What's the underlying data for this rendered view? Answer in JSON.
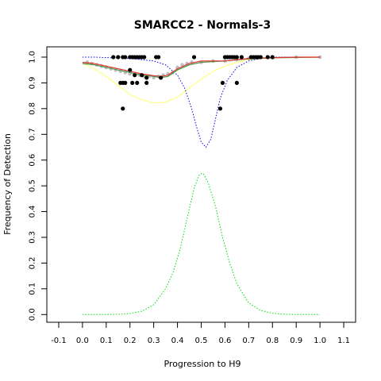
{
  "chart_data": {
    "type": "scatter",
    "title": "SMARCC2 - Normals-3",
    "xlabel": "Progression to H9",
    "ylabel": "Frequency of Detection",
    "xlim": [
      -0.15,
      1.15
    ],
    "ylim": [
      -0.03,
      1.04
    ],
    "x_ticks": [
      -0.1,
      0.0,
      0.1,
      0.2,
      0.3,
      0.4,
      0.5,
      0.6,
      0.7,
      0.8,
      0.9,
      1.0,
      1.1
    ],
    "x_tick_labels": [
      "-0.1",
      "0.0",
      "0.1",
      "0.2",
      "0.3",
      "0.4",
      "0.5",
      "0.6",
      "0.7",
      "0.8",
      "0.9",
      "1.0",
      "1.1"
    ],
    "y_ticks": [
      0.0,
      0.1,
      0.2,
      0.3,
      0.4,
      0.5,
      0.6,
      0.7,
      0.8,
      0.9,
      1.0
    ],
    "y_tick_labels": [
      "0.0",
      "0.1",
      "0.2",
      "0.3",
      "0.4",
      "0.5",
      "0.6",
      "0.7",
      "0.8",
      "0.9",
      "1.0"
    ],
    "grid": false,
    "series": [
      {
        "style": "points",
        "color": "#000000",
        "points": [
          {
            "x": 0.13,
            "y": 1.0
          },
          {
            "x": 0.15,
            "y": 1.0
          },
          {
            "x": 0.17,
            "y": 1.0
          },
          {
            "x": 0.18,
            "y": 1.0
          },
          {
            "x": 0.2,
            "y": 1.0
          },
          {
            "x": 0.21,
            "y": 1.0
          },
          {
            "x": 0.22,
            "y": 1.0
          },
          {
            "x": 0.23,
            "y": 1.0
          },
          {
            "x": 0.24,
            "y": 1.0
          },
          {
            "x": 0.25,
            "y": 1.0
          },
          {
            "x": 0.26,
            "y": 1.0
          },
          {
            "x": 0.31,
            "y": 1.0
          },
          {
            "x": 0.32,
            "y": 1.0
          },
          {
            "x": 0.47,
            "y": 1.0
          },
          {
            "x": 0.6,
            "y": 1.0
          },
          {
            "x": 0.61,
            "y": 1.0
          },
          {
            "x": 0.62,
            "y": 1.0
          },
          {
            "x": 0.63,
            "y": 1.0
          },
          {
            "x": 0.64,
            "y": 1.0
          },
          {
            "x": 0.65,
            "y": 1.0
          },
          {
            "x": 0.67,
            "y": 1.0
          },
          {
            "x": 0.71,
            "y": 1.0
          },
          {
            "x": 0.72,
            "y": 1.0
          },
          {
            "x": 0.73,
            "y": 1.0
          },
          {
            "x": 0.74,
            "y": 1.0
          },
          {
            "x": 0.75,
            "y": 1.0
          },
          {
            "x": 0.78,
            "y": 1.0
          },
          {
            "x": 0.8,
            "y": 1.0
          },
          {
            "x": 0.2,
            "y": 0.95
          },
          {
            "x": 0.22,
            "y": 0.93
          },
          {
            "x": 0.25,
            "y": 0.93
          },
          {
            "x": 0.27,
            "y": 0.92
          },
          {
            "x": 0.33,
            "y": 0.92
          },
          {
            "x": 0.16,
            "y": 0.9
          },
          {
            "x": 0.17,
            "y": 0.9
          },
          {
            "x": 0.18,
            "y": 0.9
          },
          {
            "x": 0.21,
            "y": 0.9
          },
          {
            "x": 0.23,
            "y": 0.9
          },
          {
            "x": 0.27,
            "y": 0.9
          },
          {
            "x": 0.59,
            "y": 0.9
          },
          {
            "x": 0.65,
            "y": 0.9
          },
          {
            "x": 0.17,
            "y": 0.8
          },
          {
            "x": 0.58,
            "y": 0.8
          }
        ]
      },
      {
        "style": "points",
        "color": "#bebebe",
        "points": [
          {
            "x": 0.02,
            "y": 0.98
          },
          {
            "x": 0.04,
            "y": 0.975
          },
          {
            "x": 0.06,
            "y": 0.97
          },
          {
            "x": 0.08,
            "y": 0.965
          },
          {
            "x": 0.1,
            "y": 0.96
          },
          {
            "x": 0.12,
            "y": 0.955
          },
          {
            "x": 0.14,
            "y": 0.95
          },
          {
            "x": 0.16,
            "y": 0.945
          },
          {
            "x": 0.18,
            "y": 0.94
          },
          {
            "x": 0.2,
            "y": 0.935
          },
          {
            "x": 0.22,
            "y": 0.93
          },
          {
            "x": 0.24,
            "y": 0.93
          },
          {
            "x": 0.26,
            "y": 0.925
          },
          {
            "x": 0.28,
            "y": 0.925
          },
          {
            "x": 0.3,
            "y": 0.92
          },
          {
            "x": 0.32,
            "y": 0.925
          },
          {
            "x": 0.34,
            "y": 0.93
          },
          {
            "x": 0.36,
            "y": 0.935
          },
          {
            "x": 0.38,
            "y": 0.94
          },
          {
            "x": 0.4,
            "y": 0.96
          },
          {
            "x": 0.42,
            "y": 0.97
          },
          {
            "x": 0.44,
            "y": 0.975
          },
          {
            "x": 0.46,
            "y": 0.98
          },
          {
            "x": 0.5,
            "y": 0.98
          },
          {
            "x": 0.55,
            "y": 0.985
          },
          {
            "x": 0.6,
            "y": 0.985
          },
          {
            "x": 0.65,
            "y": 0.99
          },
          {
            "x": 0.7,
            "y": 0.995
          },
          {
            "x": 0.8,
            "y": 0.998
          },
          {
            "x": 0.9,
            "y": 1.0
          },
          {
            "x": 1.0,
            "y": 1.0
          }
        ]
      },
      {
        "style": "solid",
        "color": "#e0302b",
        "points": [
          {
            "x": 0.0,
            "y": 0.98
          },
          {
            "x": 0.05,
            "y": 0.975
          },
          {
            "x": 0.1,
            "y": 0.965
          },
          {
            "x": 0.15,
            "y": 0.955
          },
          {
            "x": 0.2,
            "y": 0.945
          },
          {
            "x": 0.25,
            "y": 0.935
          },
          {
            "x": 0.3,
            "y": 0.928
          },
          {
            "x": 0.33,
            "y": 0.925
          },
          {
            "x": 0.36,
            "y": 0.93
          },
          {
            "x": 0.4,
            "y": 0.955
          },
          {
            "x": 0.45,
            "y": 0.975
          },
          {
            "x": 0.5,
            "y": 0.985
          },
          {
            "x": 0.55,
            "y": 0.985
          },
          {
            "x": 0.6,
            "y": 0.985
          },
          {
            "x": 0.65,
            "y": 0.99
          },
          {
            "x": 0.7,
            "y": 0.995
          },
          {
            "x": 0.8,
            "y": 0.998
          },
          {
            "x": 0.9,
            "y": 1.0
          },
          {
            "x": 1.0,
            "y": 1.0
          }
        ]
      },
      {
        "style": "solid",
        "color": "#4a9a4a",
        "points": [
          {
            "x": 0.0,
            "y": 0.975
          },
          {
            "x": 0.05,
            "y": 0.97
          },
          {
            "x": 0.1,
            "y": 0.96
          },
          {
            "x": 0.15,
            "y": 0.95
          },
          {
            "x": 0.2,
            "y": 0.94
          },
          {
            "x": 0.25,
            "y": 0.93
          },
          {
            "x": 0.3,
            "y": 0.925
          },
          {
            "x": 0.33,
            "y": 0.92
          },
          {
            "x": 0.36,
            "y": 0.925
          },
          {
            "x": 0.4,
            "y": 0.95
          },
          {
            "x": 0.45,
            "y": 0.97
          },
          {
            "x": 0.5,
            "y": 0.98
          },
          {
            "x": 0.6,
            "y": 0.985
          },
          {
            "x": 0.7,
            "y": 0.993
          },
          {
            "x": 0.8,
            "y": 0.997
          },
          {
            "x": 1.0,
            "y": 1.0
          }
        ]
      },
      {
        "style": "dotted",
        "color": "#0000ff",
        "points": [
          {
            "x": 0.0,
            "y": 1.0
          },
          {
            "x": 0.05,
            "y": 1.0
          },
          {
            "x": 0.1,
            "y": 0.998
          },
          {
            "x": 0.15,
            "y": 0.997
          },
          {
            "x": 0.2,
            "y": 0.995
          },
          {
            "x": 0.25,
            "y": 0.99
          },
          {
            "x": 0.3,
            "y": 0.985
          },
          {
            "x": 0.35,
            "y": 0.97
          },
          {
            "x": 0.4,
            "y": 0.93
          },
          {
            "x": 0.43,
            "y": 0.88
          },
          {
            "x": 0.46,
            "y": 0.8
          },
          {
            "x": 0.48,
            "y": 0.73
          },
          {
            "x": 0.5,
            "y": 0.67
          },
          {
            "x": 0.52,
            "y": 0.65
          },
          {
            "x": 0.54,
            "y": 0.68
          },
          {
            "x": 0.56,
            "y": 0.76
          },
          {
            "x": 0.58,
            "y": 0.84
          },
          {
            "x": 0.61,
            "y": 0.91
          },
          {
            "x": 0.65,
            "y": 0.96
          },
          {
            "x": 0.7,
            "y": 0.985
          },
          {
            "x": 0.75,
            "y": 0.995
          },
          {
            "x": 0.8,
            "y": 1.0
          },
          {
            "x": 0.9,
            "y": 1.0
          },
          {
            "x": 1.0,
            "y": 1.0
          }
        ]
      },
      {
        "style": "solid",
        "color": "#ffff80",
        "points": [
          {
            "x": 0.0,
            "y": 0.975
          },
          {
            "x": 0.05,
            "y": 0.955
          },
          {
            "x": 0.1,
            "y": 0.925
          },
          {
            "x": 0.15,
            "y": 0.89
          },
          {
            "x": 0.2,
            "y": 0.855
          },
          {
            "x": 0.25,
            "y": 0.835
          },
          {
            "x": 0.3,
            "y": 0.822
          },
          {
            "x": 0.35,
            "y": 0.825
          },
          {
            "x": 0.4,
            "y": 0.845
          },
          {
            "x": 0.45,
            "y": 0.88
          },
          {
            "x": 0.5,
            "y": 0.915
          },
          {
            "x": 0.55,
            "y": 0.945
          },
          {
            "x": 0.6,
            "y": 0.965
          },
          {
            "x": 0.65,
            "y": 0.98
          },
          {
            "x": 0.7,
            "y": 0.99
          },
          {
            "x": 0.8,
            "y": 0.998
          },
          {
            "x": 0.9,
            "y": 1.0
          },
          {
            "x": 1.0,
            "y": 1.0
          }
        ]
      },
      {
        "style": "dotted",
        "color": "#00dd00",
        "points": [
          {
            "x": 0.0,
            "y": 0.0
          },
          {
            "x": 0.1,
            "y": 0.0
          },
          {
            "x": 0.15,
            "y": 0.001
          },
          {
            "x": 0.2,
            "y": 0.004
          },
          {
            "x": 0.25,
            "y": 0.013
          },
          {
            "x": 0.3,
            "y": 0.038
          },
          {
            "x": 0.35,
            "y": 0.1
          },
          {
            "x": 0.38,
            "y": 0.16
          },
          {
            "x": 0.41,
            "y": 0.25
          },
          {
            "x": 0.44,
            "y": 0.37
          },
          {
            "x": 0.47,
            "y": 0.49
          },
          {
            "x": 0.49,
            "y": 0.54
          },
          {
            "x": 0.5,
            "y": 0.548
          },
          {
            "x": 0.51,
            "y": 0.546
          },
          {
            "x": 0.53,
            "y": 0.51
          },
          {
            "x": 0.56,
            "y": 0.42
          },
          {
            "x": 0.59,
            "y": 0.3
          },
          {
            "x": 0.62,
            "y": 0.2
          },
          {
            "x": 0.65,
            "y": 0.12
          },
          {
            "x": 0.7,
            "y": 0.045
          },
          {
            "x": 0.75,
            "y": 0.016
          },
          {
            "x": 0.8,
            "y": 0.005
          },
          {
            "x": 0.85,
            "y": 0.001
          },
          {
            "x": 0.9,
            "y": 0.0
          },
          {
            "x": 1.0,
            "y": 0.0
          }
        ]
      }
    ]
  }
}
